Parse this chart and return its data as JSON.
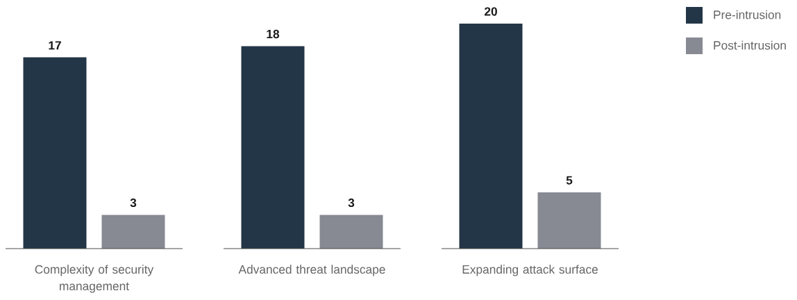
{
  "chart_data": {
    "type": "bar",
    "categories": [
      "Complexity of security management",
      "Advanced threat landscape",
      "Expanding attack surface"
    ],
    "series": [
      {
        "name": "Pre-intrusion",
        "color": "#233647",
        "values": [
          17,
          18,
          20
        ]
      },
      {
        "name": "Post-intrusion",
        "color": "#878993",
        "values": [
          3,
          3,
          5
        ]
      }
    ],
    "data_labels": true,
    "legend": "top right"
  }
}
